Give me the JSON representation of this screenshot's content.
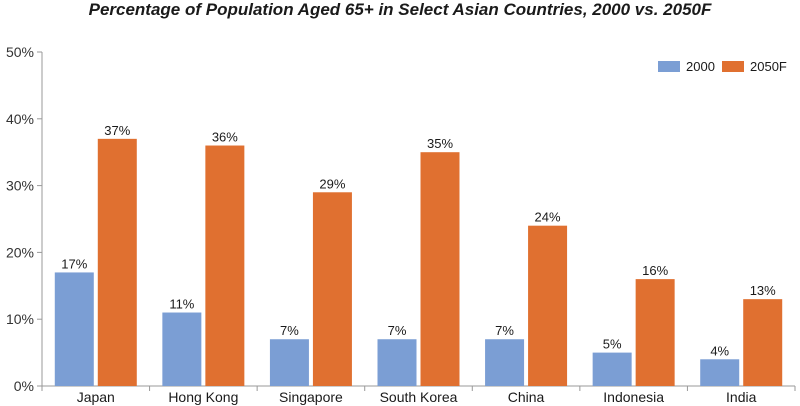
{
  "chart_data": {
    "type": "bar",
    "title": "Percentage of Population Aged 65+ in Select Asian Countries, 2000 vs. 2050F",
    "xlabel": "",
    "ylabel": "",
    "categories": [
      "Japan",
      "Hong Kong",
      "Singapore",
      "South Korea",
      "China",
      "Indonesia",
      "India"
    ],
    "series": [
      {
        "name": "2000",
        "color": "#7b9ed4",
        "values": [
          17,
          11,
          7,
          7,
          7,
          5,
          4
        ],
        "labels": [
          "17%",
          "11%",
          "7%",
          "7%",
          "7%",
          "5%",
          "4%"
        ]
      },
      {
        "name": "2050F",
        "color": "#e07030",
        "values": [
          37,
          36,
          29,
          35,
          24,
          16,
          13
        ],
        "labels": [
          "37%",
          "36%",
          "29%",
          "35%",
          "24%",
          "16%",
          "13%"
        ]
      }
    ],
    "ylim": [
      0,
      50
    ],
    "yticks": [
      0,
      10,
      20,
      30,
      40,
      50
    ],
    "ytick_labels": [
      "0%",
      "10%",
      "20%",
      "30%",
      "40%",
      "50%"
    ],
    "grid": false,
    "legend_position": "top-right"
  }
}
